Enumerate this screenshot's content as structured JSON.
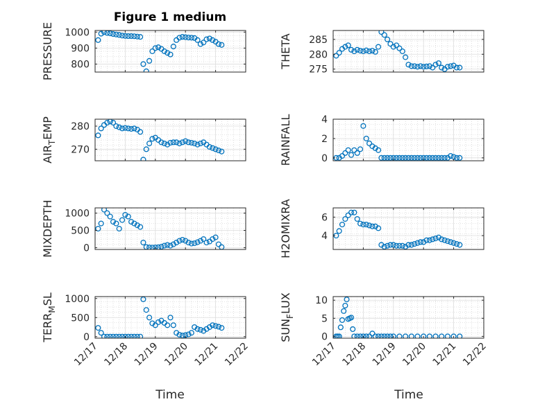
{
  "figure_title": "Figure 1 medium",
  "xlabel": "Time",
  "x_ticks": [
    "12/17",
    "12/18",
    "12/19",
    "12/20",
    "12/21",
    "12/22"
  ],
  "marker_color": "#0072BD",
  "chart_data": [
    {
      "type": "scatter",
      "ylabel": "PRESSURE",
      "ylim": [
        750,
        1010
      ],
      "yticks": [
        800,
        900,
        1000
      ],
      "xlim": [
        0,
        5
      ],
      "x": [
        0.1,
        0.2,
        0.3,
        0.4,
        0.5,
        0.6,
        0.7,
        0.8,
        0.9,
        1.0,
        1.1,
        1.2,
        1.3,
        1.4,
        1.5,
        1.6,
        1.7,
        1.8,
        1.9,
        2.0,
        2.1,
        2.2,
        2.3,
        2.4,
        2.5,
        2.6,
        2.7,
        2.8,
        2.9,
        3.0,
        3.1,
        3.2,
        3.3,
        3.4,
        3.5,
        3.6,
        3.7,
        3.8,
        3.9,
        4.0,
        4.1,
        4.2
      ],
      "y": [
        950,
        990,
        1000,
        995,
        992,
        988,
        985,
        982,
        978,
        976,
        975,
        975,
        974,
        972,
        970,
        800,
        755,
        820,
        880,
        900,
        905,
        895,
        880,
        870,
        860,
        910,
        950,
        965,
        970,
        968,
        966,
        965,
        963,
        950,
        925,
        935,
        955,
        960,
        950,
        940,
        925,
        920
      ]
    },
    {
      "type": "scatter",
      "ylabel": "THETA",
      "ylim": [
        274,
        288
      ],
      "yticks": [
        275,
        280,
        285
      ],
      "xlim": [
        0,
        5
      ],
      "x": [
        0.1,
        0.2,
        0.3,
        0.4,
        0.5,
        0.6,
        0.7,
        0.8,
        0.9,
        1.0,
        1.1,
        1.2,
        1.3,
        1.4,
        1.5,
        1.6,
        1.7,
        1.8,
        1.9,
        2.0,
        2.1,
        2.2,
        2.3,
        2.4,
        2.5,
        2.6,
        2.7,
        2.8,
        2.9,
        3.0,
        3.1,
        3.2,
        3.3,
        3.4,
        3.5,
        3.6,
        3.7,
        3.8,
        3.9,
        4.0,
        4.1,
        4.2
      ],
      "y": [
        279.5,
        280.5,
        281.8,
        282.5,
        283.0,
        281.5,
        281.0,
        281.5,
        281.2,
        281.0,
        281.3,
        281.0,
        281.2,
        280.8,
        282.5,
        287.5,
        286.5,
        285.0,
        283.5,
        282.5,
        283.0,
        282.0,
        281.0,
        279.0,
        276.5,
        276.0,
        276.0,
        275.8,
        276.0,
        275.8,
        275.9,
        276.0,
        275.5,
        276.5,
        277.0,
        275.5,
        275.0,
        275.8,
        276.0,
        276.2,
        275.5,
        275.5
      ]
    },
    {
      "type": "scatter",
      "ylabel": "AIR_TEMP",
      "ylim": [
        265,
        283
      ],
      "yticks": [
        270,
        280
      ],
      "xlim": [
        0,
        5
      ],
      "x": [
        0.1,
        0.2,
        0.3,
        0.4,
        0.5,
        0.6,
        0.7,
        0.8,
        0.9,
        1.0,
        1.1,
        1.2,
        1.3,
        1.4,
        1.5,
        1.6,
        1.7,
        1.8,
        1.9,
        2.0,
        2.1,
        2.2,
        2.3,
        2.4,
        2.5,
        2.6,
        2.7,
        2.8,
        2.9,
        3.0,
        3.1,
        3.2,
        3.3,
        3.4,
        3.5,
        3.6,
        3.7,
        3.8,
        3.9,
        4.0,
        4.1,
        4.2
      ],
      "y": [
        276,
        279,
        280.5,
        281.5,
        282.0,
        281.5,
        280.0,
        279.5,
        279.0,
        279.2,
        279.0,
        278.8,
        279.0,
        278.5,
        277.5,
        265.5,
        270.0,
        272.5,
        274.5,
        275.0,
        274.0,
        273.0,
        272.5,
        272.0,
        272.8,
        273.0,
        273.0,
        272.5,
        273.0,
        273.5,
        273.0,
        272.8,
        272.5,
        272.0,
        272.5,
        273.0,
        272.0,
        271.0,
        270.5,
        270.0,
        269.5,
        269.0
      ]
    },
    {
      "type": "scatter",
      "ylabel": "RAINFALL",
      "ylim": [
        -0.3,
        4
      ],
      "yticks": [
        0,
        2,
        4
      ],
      "xlim": [
        0,
        5
      ],
      "x": [
        0.1,
        0.2,
        0.3,
        0.4,
        0.5,
        0.6,
        0.7,
        0.8,
        0.9,
        1.0,
        1.1,
        1.2,
        1.3,
        1.4,
        1.5,
        1.6,
        1.7,
        1.8,
        1.9,
        2.0,
        2.1,
        2.2,
        2.3,
        2.4,
        2.5,
        2.6,
        2.7,
        2.8,
        2.9,
        3.0,
        3.1,
        3.2,
        3.3,
        3.4,
        3.5,
        3.6,
        3.7,
        3.8,
        3.9,
        4.0,
        4.1,
        4.2
      ],
      "y": [
        0,
        0,
        0.2,
        0.5,
        0.8,
        0.3,
        0.8,
        0.5,
        0.9,
        3.3,
        2.0,
        1.5,
        1.2,
        1.0,
        0.8,
        0,
        0,
        0,
        0,
        0,
        0,
        0,
        0,
        0,
        0,
        0,
        0,
        0,
        0,
        0,
        0,
        0,
        0,
        0,
        0,
        0,
        0,
        0,
        0.2,
        0.1,
        0,
        0
      ]
    },
    {
      "type": "scatter",
      "ylabel": "MIXDEPTH",
      "ylim": [
        -50,
        1150
      ],
      "yticks": [
        0,
        500,
        1000
      ],
      "xlim": [
        0,
        5
      ],
      "x": [
        0.1,
        0.2,
        0.3,
        0.4,
        0.5,
        0.6,
        0.7,
        0.8,
        0.9,
        1.0,
        1.1,
        1.2,
        1.3,
        1.4,
        1.5,
        1.6,
        1.7,
        1.8,
        1.9,
        2.0,
        2.1,
        2.2,
        2.3,
        2.4,
        2.5,
        2.6,
        2.7,
        2.8,
        2.9,
        3.0,
        3.1,
        3.2,
        3.3,
        3.4,
        3.5,
        3.6,
        3.7,
        3.8,
        3.9,
        4.0,
        4.1,
        4.2
      ],
      "y": [
        550,
        700,
        1100,
        1000,
        900,
        750,
        700,
        550,
        800,
        950,
        900,
        750,
        700,
        650,
        600,
        150,
        20,
        10,
        5,
        10,
        15,
        30,
        60,
        80,
        60,
        100,
        150,
        200,
        230,
        200,
        150,
        120,
        130,
        160,
        200,
        250,
        150,
        180,
        250,
        300,
        100,
        20
      ]
    },
    {
      "type": "scatter",
      "ylabel": "H2OMIXRA",
      "ylim": [
        2.5,
        7
      ],
      "yticks": [
        4,
        6
      ],
      "xlim": [
        0,
        5
      ],
      "x": [
        0.1,
        0.2,
        0.3,
        0.4,
        0.5,
        0.6,
        0.7,
        0.8,
        0.9,
        1.0,
        1.1,
        1.2,
        1.3,
        1.4,
        1.5,
        1.6,
        1.7,
        1.8,
        1.9,
        2.0,
        2.1,
        2.2,
        2.3,
        2.4,
        2.5,
        2.6,
        2.7,
        2.8,
        2.9,
        3.0,
        3.1,
        3.2,
        3.3,
        3.4,
        3.5,
        3.6,
        3.7,
        3.8,
        3.9,
        4.0,
        4.1,
        4.2
      ],
      "y": [
        4.0,
        4.5,
        5.2,
        5.8,
        6.2,
        6.5,
        6.5,
        5.8,
        5.3,
        5.2,
        5.2,
        5.1,
        5.0,
        5.0,
        4.8,
        3.0,
        2.8,
        2.9,
        3.0,
        3.0,
        2.9,
        2.9,
        2.9,
        2.8,
        3.0,
        3.0,
        3.1,
        3.2,
        3.3,
        3.3,
        3.5,
        3.5,
        3.6,
        3.7,
        3.8,
        3.6,
        3.5,
        3.4,
        3.3,
        3.2,
        3.1,
        3.0
      ]
    },
    {
      "type": "scatter",
      "ylabel": "TERR_MSL",
      "ylim": [
        -40,
        1050
      ],
      "yticks": [
        0,
        500,
        1000
      ],
      "xlim": [
        0,
        5
      ],
      "x": [
        0.1,
        0.2,
        0.3,
        0.4,
        0.5,
        0.6,
        0.7,
        0.8,
        0.9,
        1.0,
        1.1,
        1.2,
        1.3,
        1.4,
        1.5,
        1.6,
        1.7,
        1.8,
        1.9,
        2.0,
        2.1,
        2.2,
        2.3,
        2.4,
        2.5,
        2.6,
        2.7,
        2.8,
        2.9,
        3.0,
        3.1,
        3.2,
        3.3,
        3.4,
        3.5,
        3.6,
        3.7,
        3.8,
        3.9,
        4.0,
        4.1,
        4.2
      ],
      "y": [
        230,
        100,
        0,
        0,
        0,
        0,
        0,
        0,
        0,
        0,
        0,
        0,
        0,
        0,
        0,
        980,
        700,
        500,
        350,
        300,
        380,
        420,
        360,
        300,
        500,
        300,
        100,
        50,
        30,
        40,
        60,
        100,
        250,
        200,
        180,
        150,
        200,
        250,
        300,
        280,
        260,
        230
      ]
    },
    {
      "type": "scatter",
      "ylabel": "SUN_FLUX",
      "ylim": [
        -0.5,
        11
      ],
      "yticks": [
        0,
        5,
        10
      ],
      "xlim": [
        0,
        5
      ],
      "x": [
        0.1,
        0.15,
        0.2,
        0.25,
        0.3,
        0.35,
        0.4,
        0.45,
        0.5,
        0.55,
        0.6,
        0.65,
        0.7,
        0.8,
        0.9,
        1.0,
        1.1,
        1.2,
        1.3,
        1.4,
        1.5,
        1.6,
        1.7,
        1.8,
        1.9,
        2.0,
        2.2,
        2.4,
        2.6,
        2.8,
        3.0,
        3.2,
        3.4,
        3.6,
        3.8,
        4.0,
        4.2
      ],
      "y": [
        0,
        0,
        0,
        2.5,
        4.5,
        7.0,
        8.5,
        10.2,
        4.8,
        5.0,
        5.2,
        2.0,
        0,
        0,
        0,
        0,
        0,
        0,
        0.8,
        0,
        0,
        0,
        0,
        0,
        0,
        0,
        0,
        0,
        0,
        0,
        0,
        0,
        0,
        0,
        0,
        0,
        0
      ]
    }
  ]
}
